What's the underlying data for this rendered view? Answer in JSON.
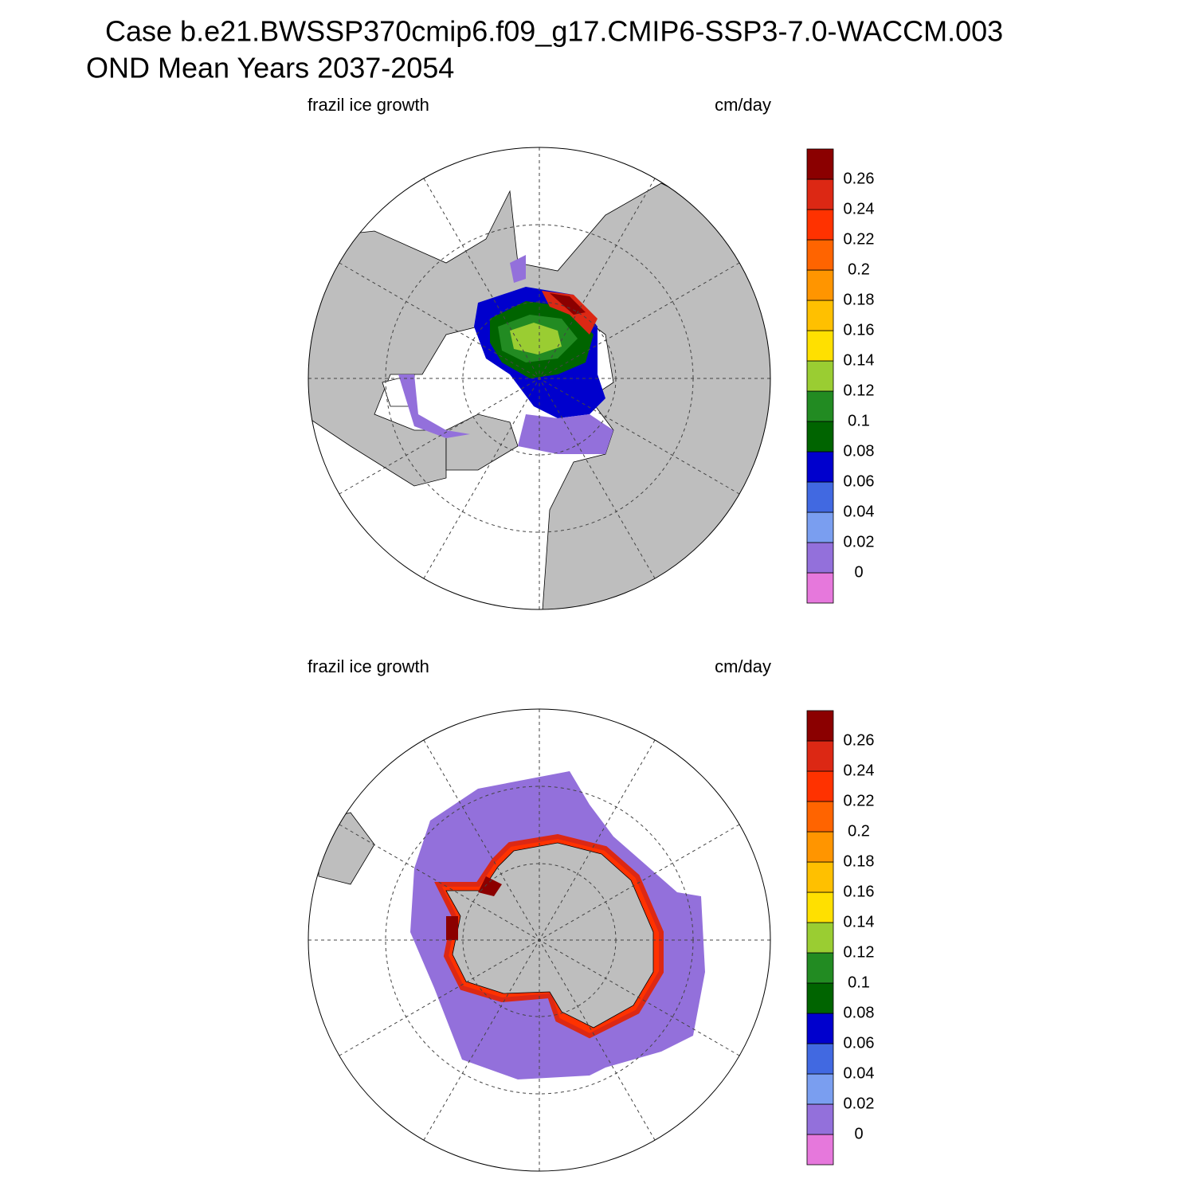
{
  "header": {
    "title": "Case b.e21.BWSSP370cmip6.f09_g17.CMIP6-SSP3-7.0-WACCM.003",
    "subtitle": "OND Mean   Years 2037-2054"
  },
  "panels": [
    {
      "left_label": "frazil ice growth",
      "right_label": "cm/day",
      "colorbar": {
        "levels": [
          0,
          0.02,
          0.04,
          0.06,
          0.08,
          0.1,
          0.12,
          0.14,
          0.16,
          0.18,
          0.2,
          0.22,
          0.24,
          0.26
        ],
        "colors": [
          "#e678dc",
          "#9370db",
          "#7a9ef0",
          "#4169e1",
          "#0000cd",
          "#006400",
          "#228b22",
          "#9acd32",
          "#ffe000",
          "#ffc000",
          "#ff9500",
          "#ff6400",
          "#ff3200",
          "#dc2814",
          "#8b0000"
        ]
      }
    },
    {
      "left_label": "frazil ice growth",
      "right_label": "cm/day",
      "colorbar": {
        "levels": [
          0,
          0.02,
          0.04,
          0.06,
          0.08,
          0.1,
          0.12,
          0.14,
          0.16,
          0.18,
          0.2,
          0.22,
          0.24,
          0.26
        ],
        "colors": [
          "#e678dc",
          "#9370db",
          "#7a9ef0",
          "#4169e1",
          "#0000cd",
          "#006400",
          "#228b22",
          "#9acd32",
          "#ffe000",
          "#ffc000",
          "#ff9500",
          "#ff6400",
          "#ff3200",
          "#dc2814",
          "#8b0000"
        ]
      }
    }
  ]
}
